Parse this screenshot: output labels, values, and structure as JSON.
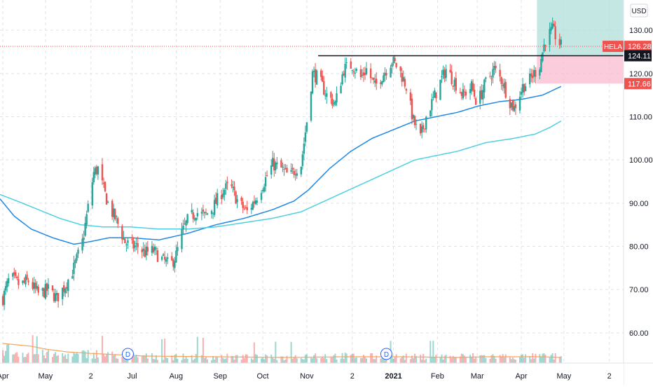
{
  "chart_data": {
    "type": "candlestick",
    "symbol": "HELA",
    "currency": "USD",
    "last_price": "126.28",
    "price_tag_color": "#ef5350",
    "ylim": [
      53,
      137
    ],
    "price_ticks": [
      {
        "value": 130,
        "label": "130.00"
      },
      {
        "value": 120,
        "label": "120.00"
      },
      {
        "value": 110,
        "label": "110.00"
      },
      {
        "value": 100,
        "label": "100.00"
      },
      {
        "value": 90,
        "label": "90.00"
      },
      {
        "value": 80,
        "label": "80.00"
      },
      {
        "value": 70,
        "label": "70.00"
      },
      {
        "value": 60,
        "label": "60.00"
      }
    ],
    "time_labels": [
      {
        "label": "Apr",
        "day": 0,
        "bold": false
      },
      {
        "label": "May",
        "day": 30,
        "bold": false
      },
      {
        "label": "2",
        "day": 62,
        "bold": false
      },
      {
        "label": "Jul",
        "day": 91,
        "bold": false
      },
      {
        "label": "Aug",
        "day": 122,
        "bold": false
      },
      {
        "label": "Sep",
        "day": 153,
        "bold": false
      },
      {
        "label": "Oct",
        "day": 183,
        "bold": false
      },
      {
        "label": "Nov",
        "day": 214,
        "bold": false
      },
      {
        "label": "2",
        "day": 246,
        "bold": false
      },
      {
        "label": "2021",
        "day": 275,
        "bold": true
      },
      {
        "label": "Feb",
        "day": 306,
        "bold": false
      },
      {
        "label": "Mar",
        "day": 334,
        "bold": false
      },
      {
        "label": "Apr",
        "day": 365,
        "bold": false
      },
      {
        "label": "May",
        "day": 395,
        "bold": false
      },
      {
        "label": "2",
        "day": 427,
        "bold": false
      }
    ],
    "x_range_days": [
      -2,
      437
    ],
    "candles_end_day": 393,
    "anchors": [
      [
        0,
        68
      ],
      [
        5,
        73
      ],
      [
        12,
        71
      ],
      [
        18,
        72
      ],
      [
        25,
        69
      ],
      [
        32,
        70
      ],
      [
        38,
        68
      ],
      [
        44,
        71
      ],
      [
        50,
        75
      ],
      [
        56,
        81
      ],
      [
        60,
        89
      ],
      [
        64,
        97
      ],
      [
        67,
        98
      ],
      [
        71,
        93
      ],
      [
        75,
        89
      ],
      [
        80,
        86
      ],
      [
        86,
        81
      ],
      [
        90,
        80
      ],
      [
        95,
        80
      ],
      [
        100,
        78.5
      ],
      [
        106,
        79
      ],
      [
        112,
        77
      ],
      [
        118,
        75.5
      ],
      [
        122,
        78
      ],
      [
        126,
        83
      ],
      [
        130,
        86
      ],
      [
        136,
        88
      ],
      [
        142,
        87
      ],
      [
        148,
        89
      ],
      [
        155,
        93
      ],
      [
        160,
        94
      ],
      [
        166,
        90
      ],
      [
        172,
        88
      ],
      [
        178,
        91
      ],
      [
        184,
        95
      ],
      [
        190,
        99
      ],
      [
        196,
        98
      ],
      [
        202,
        96
      ],
      [
        206,
        98
      ],
      [
        210,
        99
      ],
      [
        214,
        109
      ],
      [
        218,
        120
      ],
      [
        222,
        119
      ],
      [
        228,
        115
      ],
      [
        234,
        113
      ],
      [
        240,
        121
      ],
      [
        246,
        122
      ],
      [
        252,
        119
      ],
      [
        256,
        121
      ],
      [
        262,
        117
      ],
      [
        268,
        120
      ],
      [
        274,
        123
      ],
      [
        279,
        121
      ],
      [
        284,
        117
      ],
      [
        289,
        109
      ],
      [
        294,
        105
      ],
      [
        298,
        110
      ],
      [
        303,
        114
      ],
      [
        308,
        118
      ],
      [
        312,
        121
      ],
      [
        318,
        118
      ],
      [
        324,
        115
      ],
      [
        330,
        117
      ],
      [
        334,
        113
      ],
      [
        340,
        118
      ],
      [
        346,
        121
      ],
      [
        352,
        118
      ],
      [
        356,
        114
      ],
      [
        360,
        112
      ],
      [
        366,
        117
      ],
      [
        370,
        118
      ],
      [
        374,
        120
      ],
      [
        378,
        122
      ],
      [
        382,
        128
      ],
      [
        387,
        130
      ],
      [
        393,
        126.3
      ]
    ],
    "vol_anchors": [
      [
        0,
        20
      ],
      [
        10,
        14
      ],
      [
        25,
        12
      ],
      [
        40,
        10
      ],
      [
        55,
        11
      ],
      [
        62,
        13
      ],
      [
        70,
        11
      ],
      [
        90,
        9
      ],
      [
        120,
        8
      ],
      [
        160,
        8
      ],
      [
        200,
        7
      ],
      [
        214,
        10
      ],
      [
        240,
        9
      ],
      [
        275,
        8
      ],
      [
        300,
        8
      ],
      [
        340,
        9
      ],
      [
        365,
        8
      ],
      [
        385,
        9
      ],
      [
        393,
        8
      ]
    ],
    "vol_ma_anchors": [
      [
        0,
        28
      ],
      [
        10,
        26
      ],
      [
        20,
        24
      ],
      [
        30,
        20
      ],
      [
        45,
        16
      ],
      [
        60,
        14
      ],
      [
        80,
        12
      ],
      [
        100,
        10
      ],
      [
        150,
        9
      ],
      [
        200,
        8
      ],
      [
        240,
        9
      ],
      [
        280,
        9
      ],
      [
        320,
        8
      ],
      [
        340,
        9
      ],
      [
        380,
        9
      ],
      [
        393,
        8
      ]
    ],
    "moving_averages": [
      {
        "name": "",
        "color": "#1e88e5",
        "anchors": [
          [
            -2,
            91
          ],
          [
            8,
            87
          ],
          [
            20,
            84
          ],
          [
            35,
            82
          ],
          [
            50,
            80.5
          ],
          [
            60,
            81
          ],
          [
            75,
            82
          ],
          [
            90,
            82
          ],
          [
            110,
            81.5
          ],
          [
            130,
            83
          ],
          [
            150,
            85
          ],
          [
            170,
            86.5
          ],
          [
            190,
            88.5
          ],
          [
            205,
            90.5
          ],
          [
            215,
            93
          ],
          [
            230,
            98
          ],
          [
            245,
            102
          ],
          [
            260,
            105
          ],
          [
            275,
            107
          ],
          [
            290,
            109
          ],
          [
            305,
            110
          ],
          [
            320,
            111
          ],
          [
            335,
            112.5
          ],
          [
            350,
            113.5
          ],
          [
            365,
            114
          ],
          [
            380,
            115
          ],
          [
            393,
            117
          ]
        ]
      },
      {
        "name": "",
        "color": "#4dd0e1",
        "anchors": [
          [
            -2,
            92
          ],
          [
            10,
            90.5
          ],
          [
            25,
            88.5
          ],
          [
            40,
            86.5
          ],
          [
            55,
            85
          ],
          [
            70,
            84.5
          ],
          [
            90,
            84.5
          ],
          [
            110,
            84
          ],
          [
            130,
            84
          ],
          [
            150,
            84.5
          ],
          [
            170,
            85.5
          ],
          [
            190,
            86.5
          ],
          [
            210,
            88
          ],
          [
            230,
            91
          ],
          [
            250,
            94
          ],
          [
            270,
            97
          ],
          [
            290,
            100
          ],
          [
            305,
            101
          ],
          [
            320,
            102
          ],
          [
            340,
            104
          ],
          [
            360,
            105
          ],
          [
            375,
            106
          ],
          [
            385,
            107.5
          ],
          [
            393,
            109
          ]
        ]
      }
    ],
    "resistance_line": {
      "price": 124.11,
      "start_day": 222,
      "end_day": 437,
      "label": "124.11"
    },
    "stop_level": {
      "price": 117.66,
      "label": "117.66"
    },
    "target_level": {
      "price": 137
    },
    "position_start_day": 376,
    "profit_zone_color": "#b2dfdb",
    "loss_zone_color": "#f8bbd0",
    "dividends": [
      {
        "day": 88,
        "label": "D"
      },
      {
        "day": 270,
        "label": "D"
      }
    ]
  }
}
